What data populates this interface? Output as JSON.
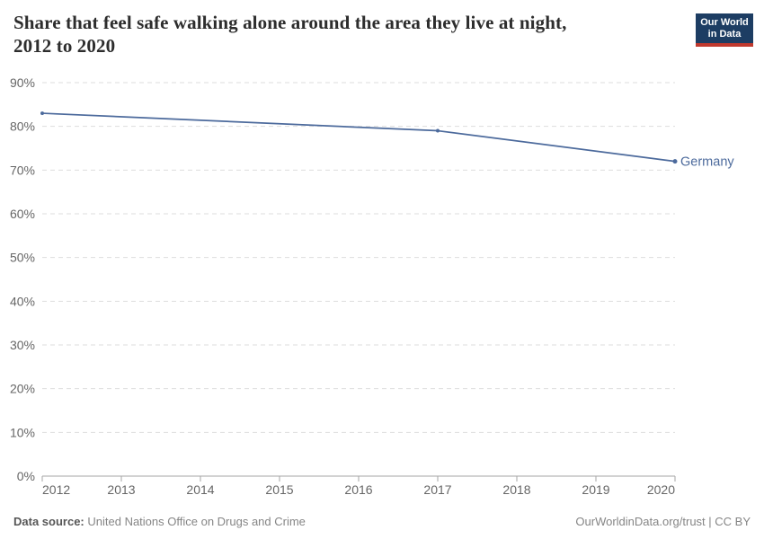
{
  "header": {
    "title_lines": [
      "Share that feel safe walking alone around the area they live at night,",
      "2012 to 2020"
    ],
    "logo": {
      "line1": "Our World",
      "line2": "in Data",
      "bg_color": "#1d3d63",
      "bar_color": "#c0392e"
    }
  },
  "chart_data": {
    "type": "line",
    "title": "Share that feel safe walking alone around the area they live at night, 2012 to 2020",
    "series": [
      {
        "name": "Germany",
        "color": "#4C6A9C",
        "points": [
          {
            "x": 2012,
            "y": 83
          },
          {
            "x": 2017,
            "y": 79
          },
          {
            "x": 2020,
            "y": 72
          }
        ]
      }
    ],
    "x_ticks": [
      2012,
      2013,
      2014,
      2015,
      2016,
      2017,
      2018,
      2019,
      2020
    ],
    "x_tick_labels": [
      "2012",
      "2013",
      "2014",
      "2015",
      "2016",
      "2017",
      "2018",
      "2019",
      "2020"
    ],
    "y_ticks": [
      0,
      10,
      20,
      30,
      40,
      50,
      60,
      70,
      80,
      90
    ],
    "y_tick_labels": [
      "0%",
      "10%",
      "20%",
      "30%",
      "40%",
      "50%",
      "60%",
      "70%",
      "80%",
      "90%"
    ],
    "xlim": [
      2012,
      2020
    ],
    "ylim": [
      0,
      90
    ],
    "grid": "horizontal-dashed",
    "legend": "inline-end-label",
    "colors": {
      "grid": "#dddddd",
      "axis": "#a5a5a5",
      "tick_text": "#666666"
    }
  },
  "footer": {
    "datasource_label": "Data source:",
    "datasource_text": "United Nations Office on Drugs and Crime",
    "credit_text": "OurWorldinData.org/trust | CC BY"
  }
}
